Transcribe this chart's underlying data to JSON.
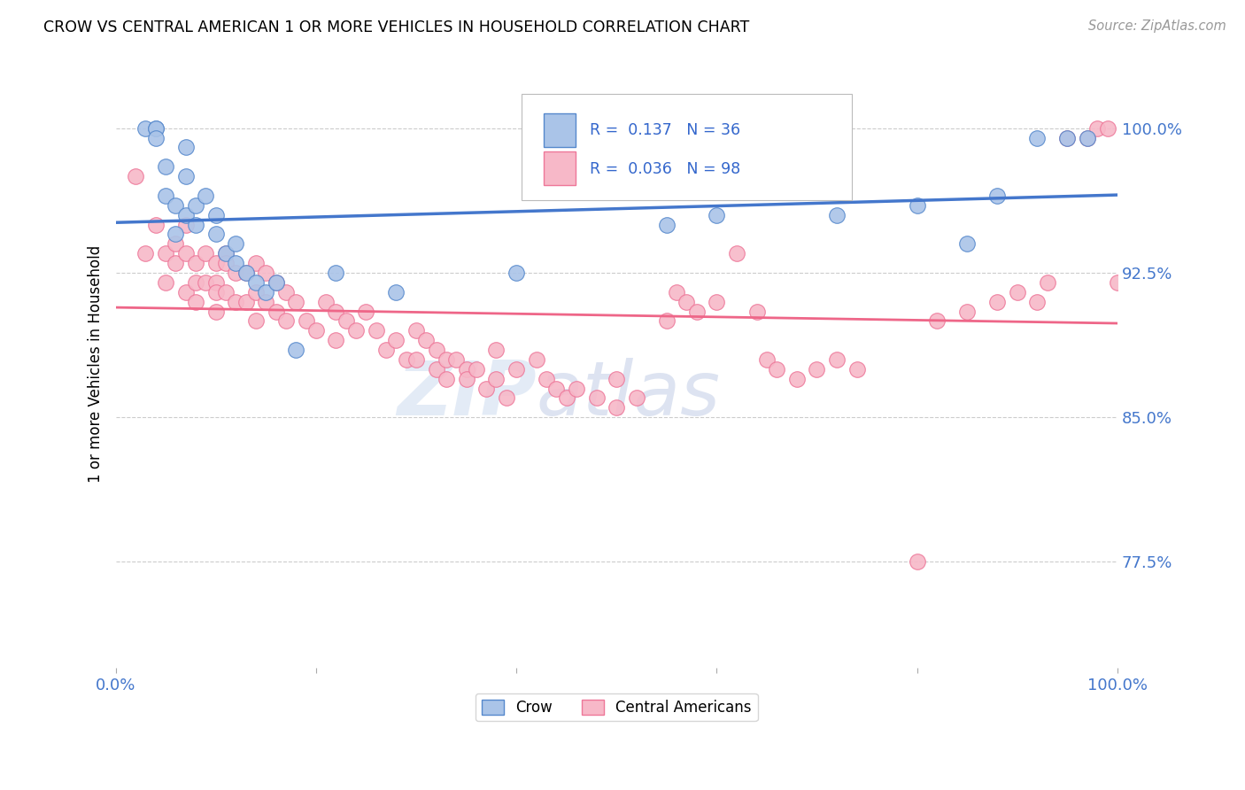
{
  "title": "CROW VS CENTRAL AMERICAN 1 OR MORE VEHICLES IN HOUSEHOLD CORRELATION CHART",
  "source": "Source: ZipAtlas.com",
  "ylabel": "1 or more Vehicles in Household",
  "yticks": [
    77.5,
    85.0,
    92.5,
    100.0
  ],
  "xlim": [
    0.0,
    1.0
  ],
  "ylim": [
    72.0,
    103.5
  ],
  "crow_R": 0.137,
  "crow_N": 36,
  "ca_R": 0.036,
  "ca_N": 98,
  "crow_color": "#aac4e8",
  "ca_color": "#f7b8c8",
  "crow_edge_color": "#5588cc",
  "ca_edge_color": "#ee7799",
  "crow_line_color": "#4477cc",
  "ca_line_color": "#ee6688",
  "watermark_zip": "ZIP",
  "watermark_atlas": "atlas",
  "crow_x": [
    0.03,
    0.04,
    0.04,
    0.04,
    0.05,
    0.05,
    0.06,
    0.06,
    0.07,
    0.07,
    0.07,
    0.08,
    0.08,
    0.09,
    0.1,
    0.1,
    0.11,
    0.12,
    0.12,
    0.13,
    0.14,
    0.15,
    0.16,
    0.18,
    0.22,
    0.28,
    0.4,
    0.55,
    0.6,
    0.72,
    0.8,
    0.85,
    0.88,
    0.92,
    0.95,
    0.97
  ],
  "crow_y": [
    100.0,
    100.0,
    100.0,
    99.5,
    98.0,
    96.5,
    96.0,
    94.5,
    99.0,
    97.5,
    95.5,
    96.0,
    95.0,
    96.5,
    95.5,
    94.5,
    93.5,
    94.0,
    93.0,
    92.5,
    92.0,
    91.5,
    92.0,
    88.5,
    92.5,
    91.5,
    92.5,
    95.0,
    95.5,
    95.5,
    96.0,
    94.0,
    96.5,
    99.5,
    99.5,
    99.5
  ],
  "ca_x": [
    0.02,
    0.03,
    0.04,
    0.05,
    0.05,
    0.06,
    0.06,
    0.07,
    0.07,
    0.07,
    0.08,
    0.08,
    0.08,
    0.09,
    0.09,
    0.1,
    0.1,
    0.1,
    0.1,
    0.11,
    0.11,
    0.11,
    0.12,
    0.12,
    0.13,
    0.13,
    0.14,
    0.14,
    0.14,
    0.15,
    0.15,
    0.16,
    0.16,
    0.17,
    0.17,
    0.18,
    0.19,
    0.2,
    0.21,
    0.22,
    0.22,
    0.23,
    0.24,
    0.25,
    0.26,
    0.27,
    0.28,
    0.29,
    0.3,
    0.3,
    0.31,
    0.32,
    0.32,
    0.33,
    0.33,
    0.34,
    0.35,
    0.35,
    0.36,
    0.37,
    0.38,
    0.38,
    0.39,
    0.4,
    0.42,
    0.43,
    0.44,
    0.45,
    0.46,
    0.48,
    0.5,
    0.5,
    0.52,
    0.55,
    0.56,
    0.57,
    0.58,
    0.6,
    0.62,
    0.64,
    0.65,
    0.66,
    0.68,
    0.7,
    0.72,
    0.74,
    0.8,
    0.82,
    0.85,
    0.88,
    0.9,
    0.92,
    0.93,
    0.95,
    0.97,
    0.98,
    0.99,
    1.0
  ],
  "ca_y": [
    97.5,
    93.5,
    95.0,
    93.5,
    92.0,
    94.0,
    93.0,
    95.0,
    93.5,
    91.5,
    93.0,
    92.0,
    91.0,
    93.5,
    92.0,
    93.0,
    92.0,
    91.5,
    90.5,
    93.5,
    93.0,
    91.5,
    92.5,
    91.0,
    92.5,
    91.0,
    93.0,
    91.5,
    90.0,
    92.5,
    91.0,
    92.0,
    90.5,
    91.5,
    90.0,
    91.0,
    90.0,
    89.5,
    91.0,
    90.5,
    89.0,
    90.0,
    89.5,
    90.5,
    89.5,
    88.5,
    89.0,
    88.0,
    89.5,
    88.0,
    89.0,
    88.5,
    87.5,
    88.0,
    87.0,
    88.0,
    87.5,
    87.0,
    87.5,
    86.5,
    88.5,
    87.0,
    86.0,
    87.5,
    88.0,
    87.0,
    86.5,
    86.0,
    86.5,
    86.0,
    87.0,
    85.5,
    86.0,
    90.0,
    91.5,
    91.0,
    90.5,
    91.0,
    93.5,
    90.5,
    88.0,
    87.5,
    87.0,
    87.5,
    88.0,
    87.5,
    77.5,
    90.0,
    90.5,
    91.0,
    91.5,
    91.0,
    92.0,
    99.5,
    99.5,
    100.0,
    100.0,
    92.0
  ]
}
